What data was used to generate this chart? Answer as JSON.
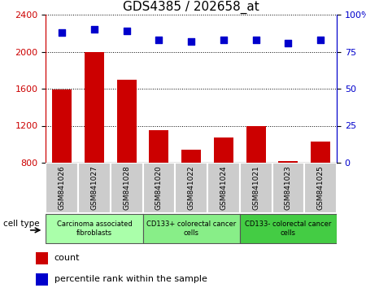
{
  "title": "GDS4385 / 202658_at",
  "samples": [
    "GSM841026",
    "GSM841027",
    "GSM841028",
    "GSM841020",
    "GSM841022",
    "GSM841024",
    "GSM841021",
    "GSM841023",
    "GSM841025"
  ],
  "counts": [
    1590,
    2000,
    1700,
    1155,
    940,
    1075,
    1195,
    820,
    1030
  ],
  "percentiles": [
    88,
    90,
    89,
    83,
    82,
    83,
    83,
    81,
    83
  ],
  "cell_types": [
    {
      "label": "Carcinoma associated\nfibroblasts",
      "start": 0,
      "end": 3,
      "color": "#aaffaa"
    },
    {
      "label": "CD133+ colorectal cancer\ncells",
      "start": 3,
      "end": 6,
      "color": "#88ee88"
    },
    {
      "label": "CD133- colorectal cancer\ncells",
      "start": 6,
      "end": 9,
      "color": "#44cc44"
    }
  ],
  "ylim_left": [
    800,
    2400
  ],
  "ylim_right": [
    0,
    100
  ],
  "yticks_left": [
    800,
    1200,
    1600,
    2000,
    2400
  ],
  "yticks_right": [
    0,
    25,
    50,
    75,
    100
  ],
  "bar_color": "#cc0000",
  "dot_color": "#0000cc",
  "tick_color_left": "#cc0000",
  "tick_color_right": "#0000cc",
  "grid_color": "#000000",
  "legend_count_label": "count",
  "legend_pct_label": "percentile rank within the sample",
  "cell_type_label": "cell type"
}
